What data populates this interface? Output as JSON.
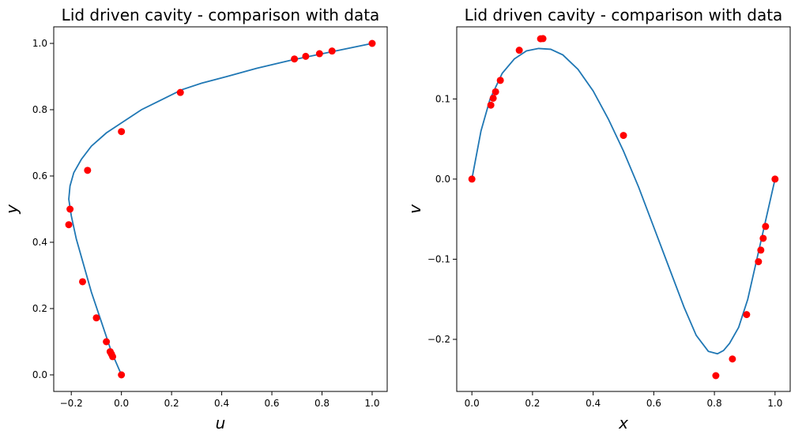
{
  "chart_data": [
    {
      "type": "line",
      "title": "Lid driven cavity - comparison with data",
      "xlabel": "u",
      "ylabel": "y",
      "xlim": [
        -0.27,
        1.06
      ],
      "ylim": [
        -0.05,
        1.05
      ],
      "xticks": [
        -0.2,
        0.0,
        0.2,
        0.4,
        0.6,
        0.8,
        1.0
      ],
      "xtick_labels": [
        "−0.2",
        "0.0",
        "0.2",
        "0.4",
        "0.6",
        "0.8",
        "1.0"
      ],
      "yticks": [
        0.0,
        0.2,
        0.4,
        0.6,
        0.8,
        1.0
      ],
      "ytick_labels": [
        "0.0",
        "0.2",
        "0.4",
        "0.6",
        "0.8",
        "1.0"
      ],
      "grid": false,
      "line": {
        "color": "#1f77b4",
        "x": [
          0.0,
          -0.04,
          -0.08,
          -0.12,
          -0.15,
          -0.18,
          -0.2,
          -0.21,
          -0.205,
          -0.19,
          -0.16,
          -0.12,
          -0.06,
          0.0,
          0.08,
          0.16,
          0.24,
          0.32,
          0.42,
          0.54,
          0.68,
          0.84,
          1.0
        ],
        "y": [
          0.0,
          0.07,
          0.16,
          0.25,
          0.33,
          0.41,
          0.48,
          0.53,
          0.57,
          0.61,
          0.65,
          0.69,
          0.73,
          0.76,
          0.8,
          0.83,
          0.86,
          0.88,
          0.9,
          0.925,
          0.95,
          0.975,
          1.0
        ]
      },
      "points": {
        "color": "#ff0000",
        "x": [
          0.0,
          -0.035,
          -0.04,
          -0.045,
          -0.06,
          -0.1,
          -0.155,
          -0.21,
          -0.205,
          -0.135,
          0.0,
          0.235,
          0.69,
          0.735,
          0.79,
          0.84,
          1.0
        ],
        "y": [
          0.0,
          0.055,
          0.063,
          0.07,
          0.1,
          0.172,
          0.281,
          0.453,
          0.5,
          0.617,
          0.734,
          0.852,
          0.953,
          0.961,
          0.969,
          0.977,
          1.0
        ]
      }
    },
    {
      "type": "line",
      "title": "Lid driven cavity - comparison with data",
      "xlabel": "x",
      "ylabel": "v",
      "xlim": [
        -0.05,
        1.05
      ],
      "ylim": [
        -0.265,
        0.19
      ],
      "xticks": [
        0.0,
        0.2,
        0.4,
        0.6,
        0.8,
        1.0
      ],
      "xtick_labels": [
        "0.0",
        "0.2",
        "0.4",
        "0.6",
        "0.8",
        "1.0"
      ],
      "yticks": [
        -0.2,
        -0.1,
        0.0,
        0.1
      ],
      "ytick_labels": [
        "−0.2",
        "−0.1",
        "0.0",
        "0.1"
      ],
      "grid": false,
      "line": {
        "color": "#1f77b4",
        "x": [
          0.0,
          0.03,
          0.06,
          0.1,
          0.14,
          0.18,
          0.22,
          0.26,
          0.3,
          0.35,
          0.4,
          0.45,
          0.5,
          0.55,
          0.6,
          0.65,
          0.7,
          0.74,
          0.78,
          0.81,
          0.83,
          0.85,
          0.88,
          0.91,
          0.94,
          0.97,
          1.0
        ],
        "y": [
          0.0,
          0.06,
          0.1,
          0.132,
          0.15,
          0.16,
          0.163,
          0.162,
          0.155,
          0.137,
          0.11,
          0.075,
          0.035,
          -0.01,
          -0.06,
          -0.11,
          -0.16,
          -0.195,
          -0.215,
          -0.218,
          -0.214,
          -0.205,
          -0.185,
          -0.15,
          -0.1,
          -0.05,
          0.0
        ]
      },
      "points": {
        "color": "#ff0000",
        "x": [
          0.0,
          0.0625,
          0.0703,
          0.0781,
          0.0938,
          0.1563,
          0.2266,
          0.2344,
          0.5,
          0.8047,
          0.8594,
          0.9063,
          0.9453,
          0.9531,
          0.9609,
          0.9688,
          1.0
        ],
        "y": [
          0.0,
          0.0923,
          0.1009,
          0.1089,
          0.1232,
          0.1608,
          0.1751,
          0.1753,
          0.0545,
          -0.2453,
          -0.2245,
          -0.1691,
          -0.1031,
          -0.0886,
          -0.0739,
          -0.0591,
          0.0
        ]
      }
    }
  ]
}
